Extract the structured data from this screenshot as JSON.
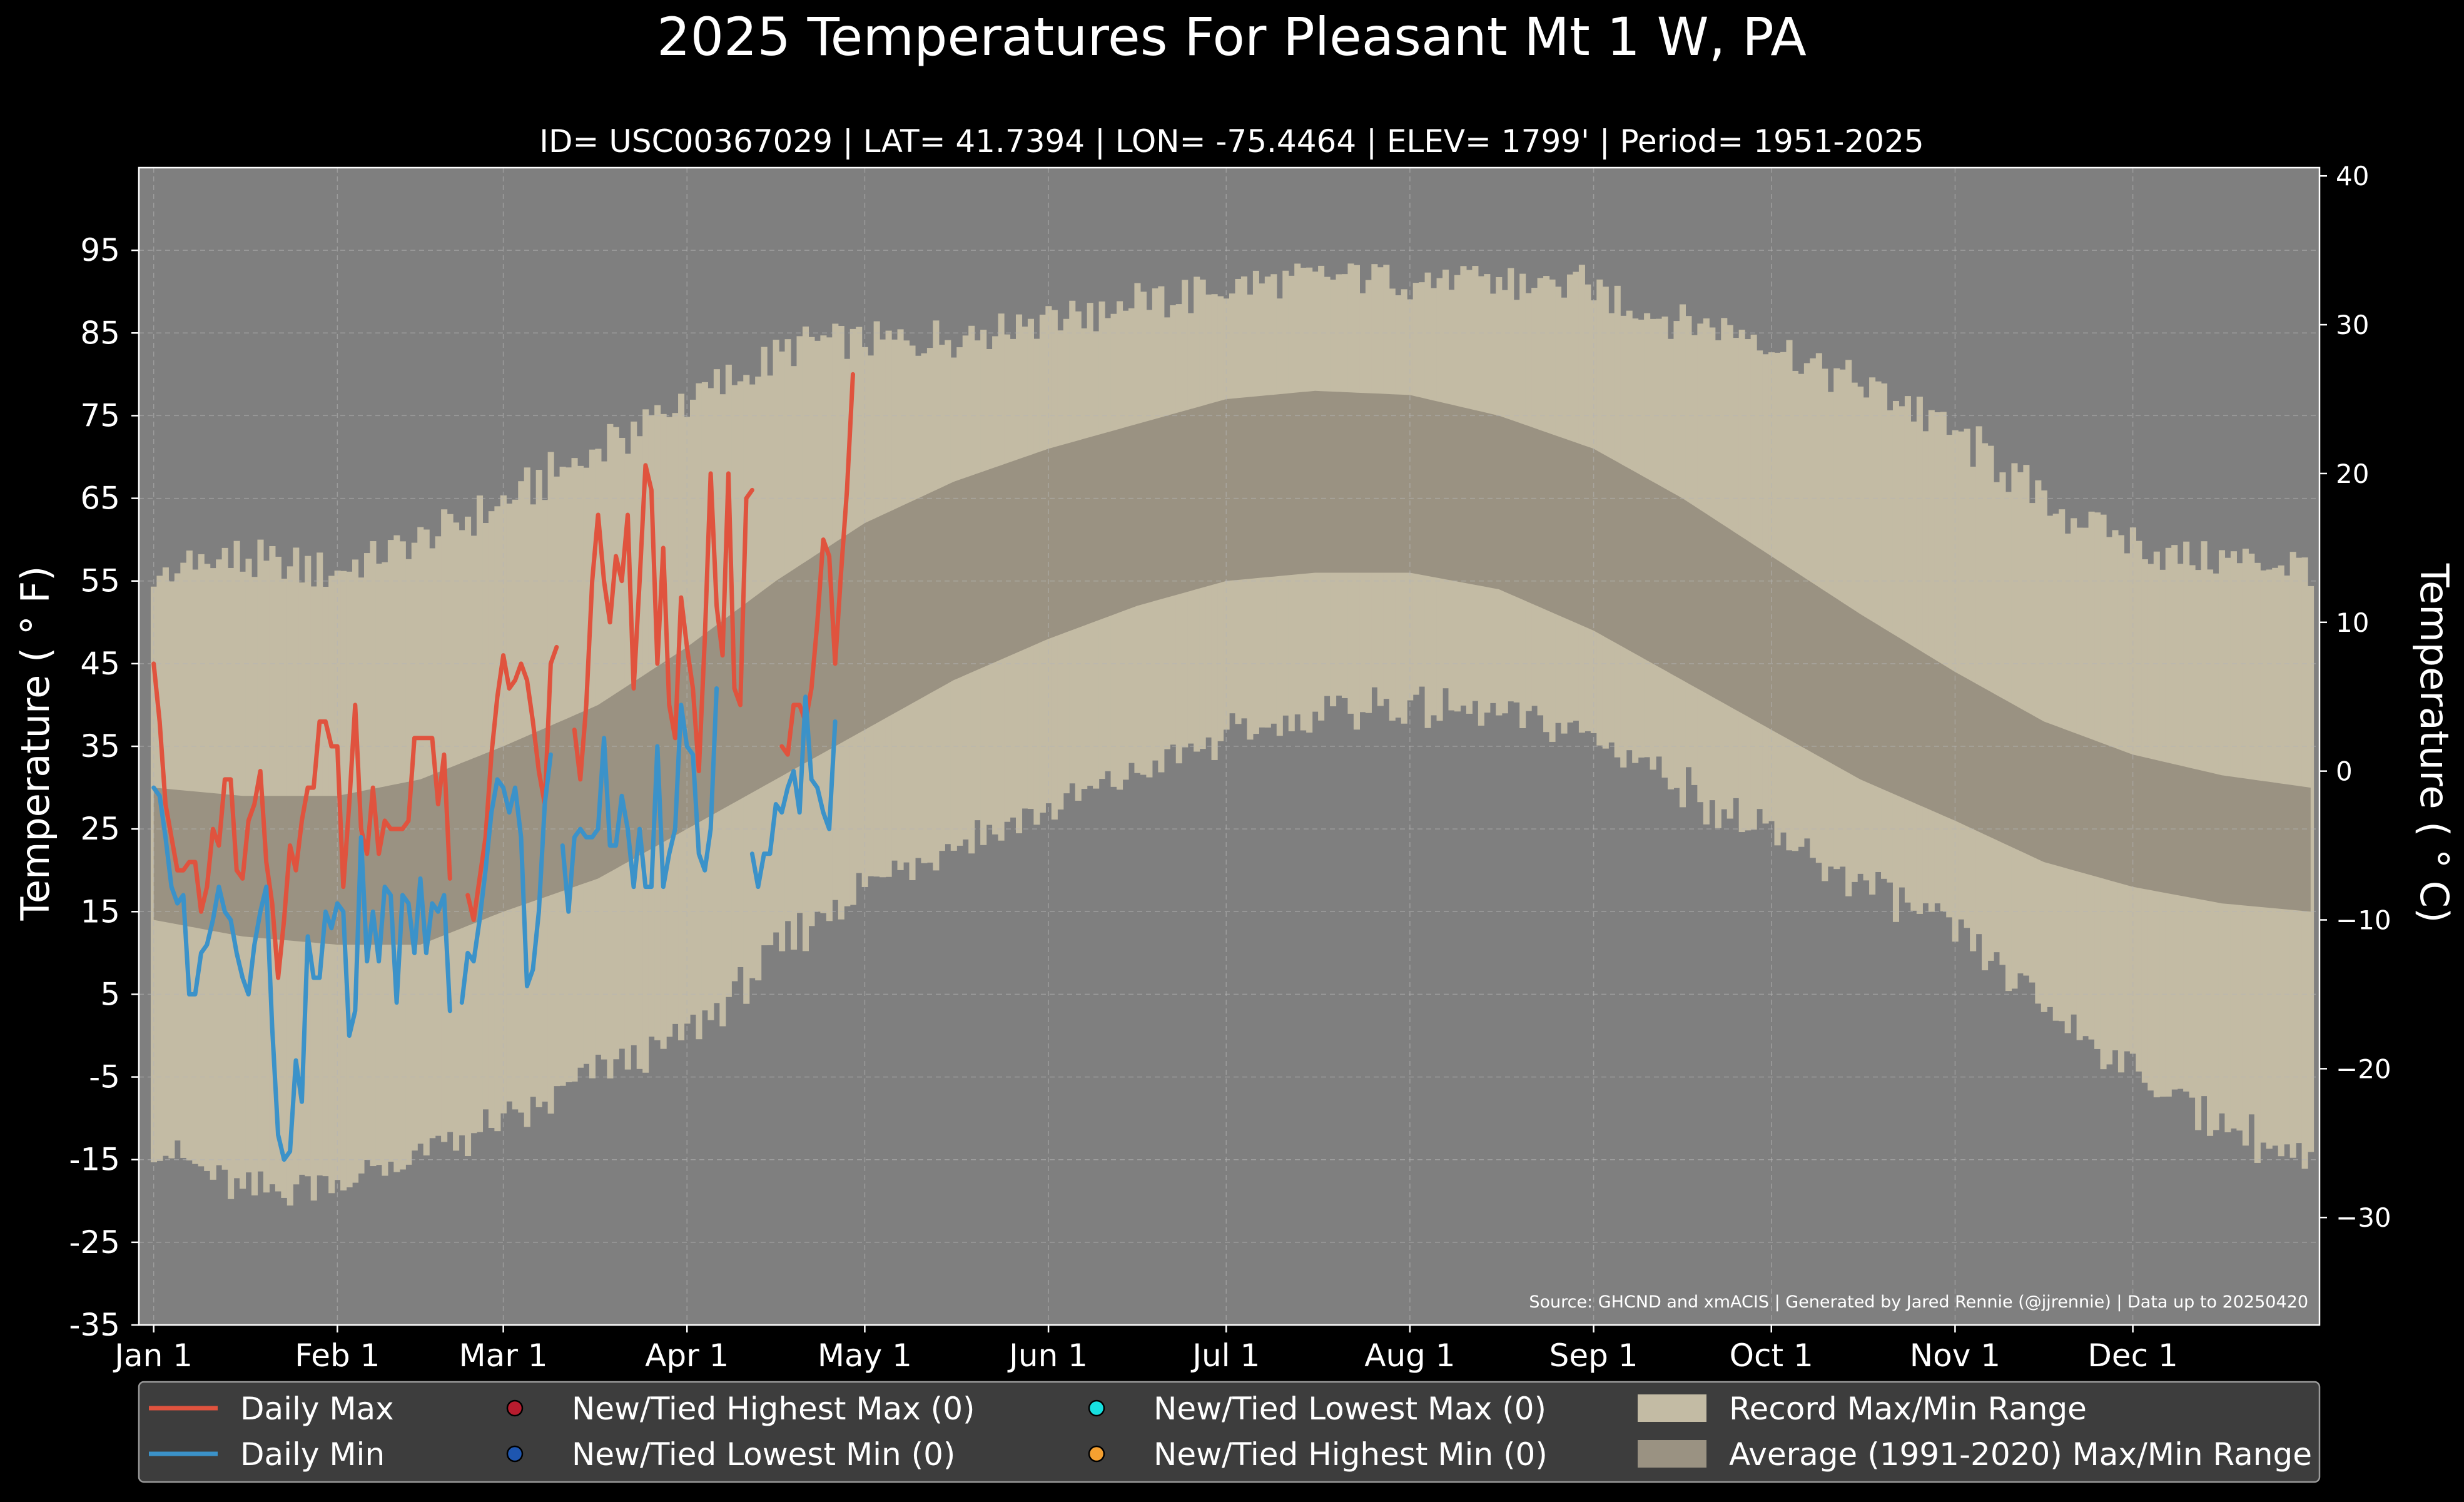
{
  "chart_data": {
    "type": "line",
    "title": "2025 Temperatures For Pleasant Mt 1 W, PA",
    "subtitle": "ID= USC00367029 | LAT= 41.7394 | LON= -75.4464 | ELEV= 1799' | Period= 1951-2025",
    "ylabel_left": "Temperature ($^\\circ$F)",
    "ylabel_left_display": "Temperature ( ° F)",
    "ylabel_right_display": "Temperature ( ° C)",
    "source": "Source: GHCND and xmACIS | Generated by Jared Rennie (@jjrennie) | Data up to 20250420",
    "ylim_f": [
      -35,
      105
    ],
    "ylim_c": [
      -37.2,
      40.6
    ],
    "xlim_day": [
      -2.5,
      365.5
    ],
    "grid": true,
    "y_ticks_f": [
      -35,
      -25,
      -15,
      -5,
      5,
      15,
      25,
      35,
      45,
      55,
      65,
      75,
      85,
      95
    ],
    "y_tick_labels_f": [
      "-35",
      "-25",
      "-15",
      "-5",
      "5",
      "15",
      "25",
      "35",
      "45",
      "55",
      "65",
      "75",
      "85",
      "95"
    ],
    "y_ticks_c": [
      -30,
      -20,
      -10,
      0,
      10,
      20,
      30,
      40
    ],
    "y_tick_labels_c": [
      "−30",
      "−20",
      "−10",
      "0",
      "10",
      "20",
      "30",
      "40"
    ],
    "month_starts": [
      0,
      31,
      59,
      90,
      120,
      151,
      181,
      212,
      243,
      273,
      304,
      334
    ],
    "month_labels": [
      "Jan 1",
      "Feb 1",
      "Mar 1",
      "Apr 1",
      "May 1",
      "Jun 1",
      "Jul 1",
      "Aug 1",
      "Sep 1",
      "Oct 1",
      "Nov 1",
      "Dec 1"
    ],
    "record_max_knots": [
      [
        0,
        55
      ],
      [
        10,
        58
      ],
      [
        30,
        56
      ],
      [
        45,
        60
      ],
      [
        58,
        64
      ],
      [
        70,
        69
      ],
      [
        80,
        73
      ],
      [
        90,
        77
      ],
      [
        100,
        80
      ],
      [
        110,
        84
      ],
      [
        130,
        84
      ],
      [
        150,
        87
      ],
      [
        170,
        89
      ],
      [
        185,
        91
      ],
      [
        205,
        92
      ],
      [
        225,
        91
      ],
      [
        240,
        91
      ],
      [
        255,
        87
      ],
      [
        270,
        85
      ],
      [
        280,
        81
      ],
      [
        295,
        77
      ],
      [
        310,
        70
      ],
      [
        320,
        64
      ],
      [
        340,
        58
      ],
      [
        364,
        57
      ]
    ],
    "record_min_knots": [
      [
        0,
        -13
      ],
      [
        15,
        -19
      ],
      [
        35,
        -17
      ],
      [
        50,
        -13
      ],
      [
        65,
        -9
      ],
      [
        75,
        -4
      ],
      [
        85,
        -2
      ],
      [
        95,
        3
      ],
      [
        105,
        10
      ],
      [
        115,
        16
      ],
      [
        130,
        22
      ],
      [
        150,
        27
      ],
      [
        170,
        33
      ],
      [
        185,
        37
      ],
      [
        205,
        40
      ],
      [
        225,
        39
      ],
      [
        240,
        37
      ],
      [
        255,
        32
      ],
      [
        265,
        27
      ],
      [
        275,
        23
      ],
      [
        290,
        18
      ],
      [
        305,
        12
      ],
      [
        320,
        3
      ],
      [
        340,
        -7
      ],
      [
        364,
        -16
      ]
    ],
    "record_noise_amplitude_f": 3,
    "normal_max_knots": [
      [
        0,
        30
      ],
      [
        15,
        29
      ],
      [
        31,
        29
      ],
      [
        45,
        31
      ],
      [
        59,
        35
      ],
      [
        75,
        40
      ],
      [
        90,
        47
      ],
      [
        105,
        55
      ],
      [
        120,
        62
      ],
      [
        135,
        67
      ],
      [
        151,
        71
      ],
      [
        166,
        74
      ],
      [
        181,
        77
      ],
      [
        196,
        78
      ],
      [
        212,
        77.5
      ],
      [
        227,
        75
      ],
      [
        243,
        71
      ],
      [
        258,
        65
      ],
      [
        273,
        58
      ],
      [
        288,
        51
      ],
      [
        304,
        44
      ],
      [
        319,
        38
      ],
      [
        334,
        34
      ],
      [
        349,
        31.5
      ],
      [
        364,
        30
      ]
    ],
    "normal_min_knots": [
      [
        0,
        14
      ],
      [
        15,
        12
      ],
      [
        31,
        11
      ],
      [
        45,
        11
      ],
      [
        59,
        15
      ],
      [
        75,
        19
      ],
      [
        90,
        25
      ],
      [
        105,
        31
      ],
      [
        120,
        37
      ],
      [
        135,
        43
      ],
      [
        151,
        48
      ],
      [
        166,
        52
      ],
      [
        181,
        55
      ],
      [
        196,
        56
      ],
      [
        212,
        56
      ],
      [
        227,
        54
      ],
      [
        243,
        49
      ],
      [
        258,
        43
      ],
      [
        273,
        37
      ],
      [
        288,
        31
      ],
      [
        304,
        26
      ],
      [
        319,
        21
      ],
      [
        334,
        18
      ],
      [
        349,
        16
      ],
      [
        364,
        15
      ]
    ],
    "series": [
      {
        "name": "Daily Max",
        "color": "#e0533e",
        "values": [
          45,
          38,
          28,
          24,
          20,
          20,
          21,
          21,
          15,
          18,
          25,
          23,
          31,
          31,
          20,
          19,
          26,
          28,
          32,
          21,
          16,
          7,
          14,
          23,
          20,
          26,
          30,
          30,
          38,
          38,
          35,
          35,
          18,
          28,
          40,
          25,
          22,
          30,
          22,
          26,
          25,
          25,
          25,
          26,
          36,
          36,
          36,
          36,
          28,
          34,
          19,
          null,
          null,
          17,
          14,
          19,
          24,
          34,
          41,
          46,
          42,
          43,
          45,
          43,
          38,
          32,
          28,
          45,
          47,
          null,
          null,
          37,
          31,
          40,
          55,
          63,
          55,
          50,
          58,
          55,
          63,
          42,
          55,
          69,
          66,
          45,
          59,
          40,
          36,
          53,
          47,
          42,
          32,
          48,
          68,
          52,
          46,
          68,
          42,
          40,
          65,
          66,
          null,
          null,
          null,
          null,
          35,
          34,
          40,
          40,
          38,
          42,
          50,
          60,
          58,
          45,
          56,
          66,
          80
        ]
      },
      {
        "name": "Daily Min",
        "color": "#3b92c9",
        "values": [
          30,
          29,
          24,
          18,
          16,
          17,
          5,
          5,
          10,
          11,
          14,
          18,
          15,
          14,
          10,
          7,
          5,
          11,
          15,
          18,
          1,
          -12,
          -15,
          -14,
          -3,
          -8,
          12,
          7,
          7,
          15,
          13,
          16,
          15,
          0,
          3,
          24,
          9,
          15,
          9,
          18,
          17,
          4,
          17,
          16,
          10,
          19,
          10,
          16,
          15,
          17,
          3,
          null,
          4,
          10,
          9,
          14,
          20,
          27,
          31,
          30,
          27,
          30,
          24,
          6,
          8,
          15,
          28,
          34,
          null,
          23,
          15,
          24,
          25,
          24,
          24,
          25,
          36,
          23,
          23,
          29,
          25,
          18,
          25,
          18,
          18,
          35,
          18,
          22,
          25,
          40,
          35,
          34,
          22,
          20,
          25,
          42,
          null,
          null,
          null,
          null,
          null,
          22,
          18,
          22,
          22,
          28,
          27,
          30,
          32,
          27,
          41,
          31,
          30,
          27,
          25,
          38
        ]
      }
    ],
    "legend": {
      "placement": "bottom",
      "entries": [
        {
          "label": "Daily Max",
          "kind": "line",
          "color": "#e0533e"
        },
        {
          "label": "New/Tied Highest Max (0)",
          "kind": "dot",
          "color": "#b81c2e"
        },
        {
          "label": "New/Tied Lowest Max (0)",
          "kind": "dot",
          "color": "#17e0e0"
        },
        {
          "label": "Record Max/Min Range",
          "kind": "patch",
          "color": "#c3bba4"
        },
        {
          "label": "Daily Min",
          "kind": "line",
          "color": "#3b92c9"
        },
        {
          "label": "New/Tied Lowest Min (0)",
          "kind": "dot",
          "color": "#1e56b0"
        },
        {
          "label": "New/Tied Highest Min (0)",
          "kind": "dot",
          "color": "#f5a030"
        },
        {
          "label": "Average (1991-2020) Max/Min Range",
          "kind": "patch",
          "color": "#9a9282"
        }
      ]
    },
    "colors": {
      "background": "#000000",
      "plot_background": "#7f7f7f",
      "record_range": "#c3bba4",
      "normal_range": "#9a9282",
      "grid": "#b5b5b5",
      "legend_background": "#3d3d3d"
    }
  }
}
